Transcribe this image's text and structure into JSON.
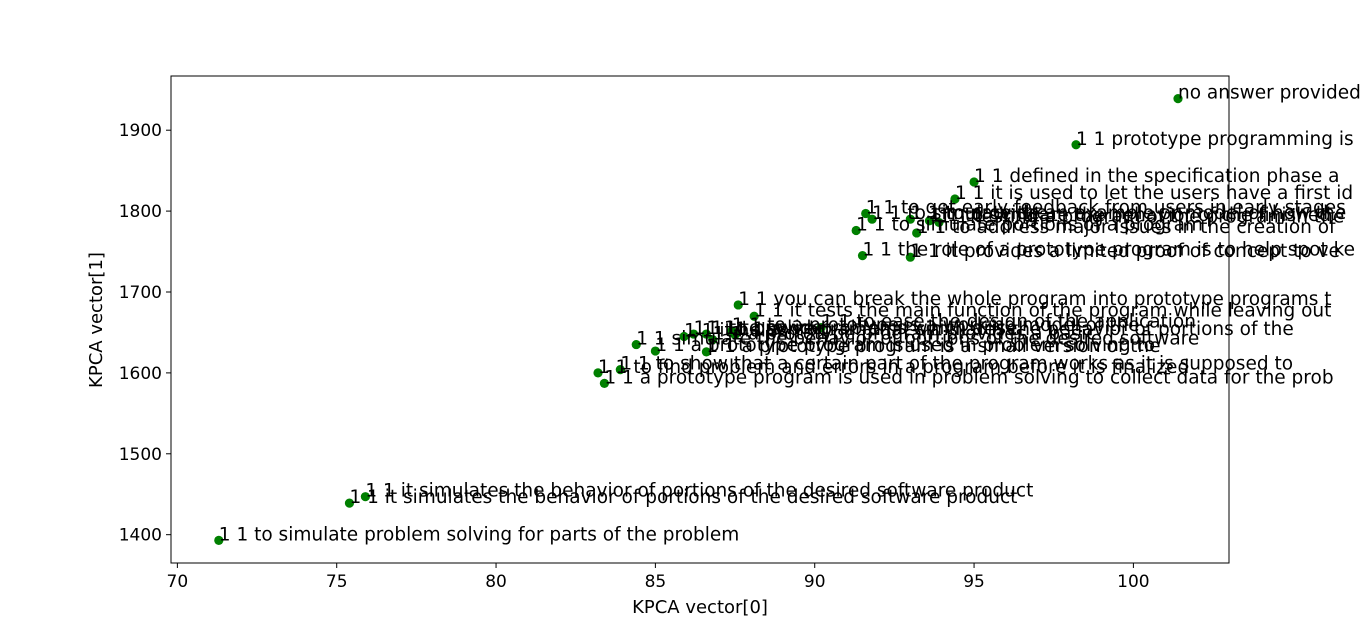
{
  "chart_data": {
    "type": "scatter",
    "title": "",
    "xlabel": "KPCA vector[0]",
    "ylabel": "KPCA vector[1]",
    "xlim": [
      69.8,
      103.0
    ],
    "ylim": [
      1365,
      1967
    ],
    "xticks": [
      70,
      75,
      80,
      85,
      90,
      95,
      100
    ],
    "yticks": [
      1400,
      1500,
      1600,
      1700,
      1800,
      1900
    ],
    "grid": false,
    "point_color": "#008000",
    "points": [
      {
        "x": 101.4,
        "y": 1939,
        "label": "no answer provided"
      },
      {
        "x": 98.2,
        "y": 1882,
        "label": "1 1 prototype programming is"
      },
      {
        "x": 95.0,
        "y": 1836,
        "label": "1 1 defined in the specification phase a"
      },
      {
        "x": 94.4,
        "y": 1815,
        "label": "1 1 it is used to let the users have a first id"
      },
      {
        "x": 91.6,
        "y": 1797,
        "label": "1 1 to get early feedback from users in early stages"
      },
      {
        "x": 91.8,
        "y": 1790,
        "label": "1 1 to simulate the"
      },
      {
        "x": 93.0,
        "y": 1790,
        "label": "1 1 to provide an example or model of how the"
      },
      {
        "x": 93.6,
        "y": 1788,
        "label": "1 1 to simulate the behavior of the finished"
      },
      {
        "x": 93.9,
        "y": 1786,
        "label": "1 1 testing a program of the program in the"
      },
      {
        "x": 91.3,
        "y": 1776,
        "label": "1 1 to simulate portions of a program"
      },
      {
        "x": 93.2,
        "y": 1773,
        "label": "1 1 to address major issues in the creation of"
      },
      {
        "x": 91.5,
        "y": 1745,
        "label": "1 1 the role of a prototype program is to help spot ke"
      },
      {
        "x": 93.0,
        "y": 1743,
        "label": "1 1 it provides a limited proof of concept to ve"
      },
      {
        "x": 87.6,
        "y": 1684,
        "label": "1 1 you can break the whole program into prototype programs t"
      },
      {
        "x": 88.1,
        "y": 1670,
        "label": "1 1 it tests the main function of the program while leaving out"
      },
      {
        "x": 86.2,
        "y": 1648,
        "label": "1 1 to provide"
      },
      {
        "x": 86.6,
        "y": 1648,
        "label": "1 1 to solve problems which arise"
      },
      {
        "x": 87.4,
        "y": 1652,
        "label": "1 1 to a prototype is a working model of the"
      },
      {
        "x": 87.5,
        "y": 1647,
        "label": "1 1 a program that simulates the behavior of portions of the"
      },
      {
        "x": 90.2,
        "y": 1656,
        "label": "1 1 to ease the design of the application"
      },
      {
        "x": 85.9,
        "y": 1645,
        "label": "1 1 it helps"
      },
      {
        "x": 86.8,
        "y": 1641,
        "label": "1 1 a prototype program provides a basic"
      },
      {
        "x": 84.4,
        "y": 1635,
        "label": "1 1 simulate the behavior of portions of the desired software"
      },
      {
        "x": 85.0,
        "y": 1627,
        "label": "1 1 a prototype program is used in problem solving to"
      },
      {
        "x": 86.6,
        "y": 1626,
        "label": "1 1 a prototype program is a small version of the"
      },
      {
        "x": 83.2,
        "y": 1600,
        "label": "1 1 to find problem and errors in a program before it is finalized"
      },
      {
        "x": 83.9,
        "y": 1604,
        "label": "1 1 to show that a certain part of the program works as it is supposed to"
      },
      {
        "x": 83.4,
        "y": 1587,
        "label": "1 1 a prototype program is used in problem solving to collect data for the prob"
      },
      {
        "x": 75.9,
        "y": 1447,
        "label": "1 1 it simulates the behavior of portions of the desired software product"
      },
      {
        "x": 75.4,
        "y": 1439,
        "label": "1 1 it simulates the behavior of portions of the desired software product"
      },
      {
        "x": 71.3,
        "y": 1393,
        "label": "1 1 to simulate problem solving for parts of the problem"
      }
    ]
  }
}
